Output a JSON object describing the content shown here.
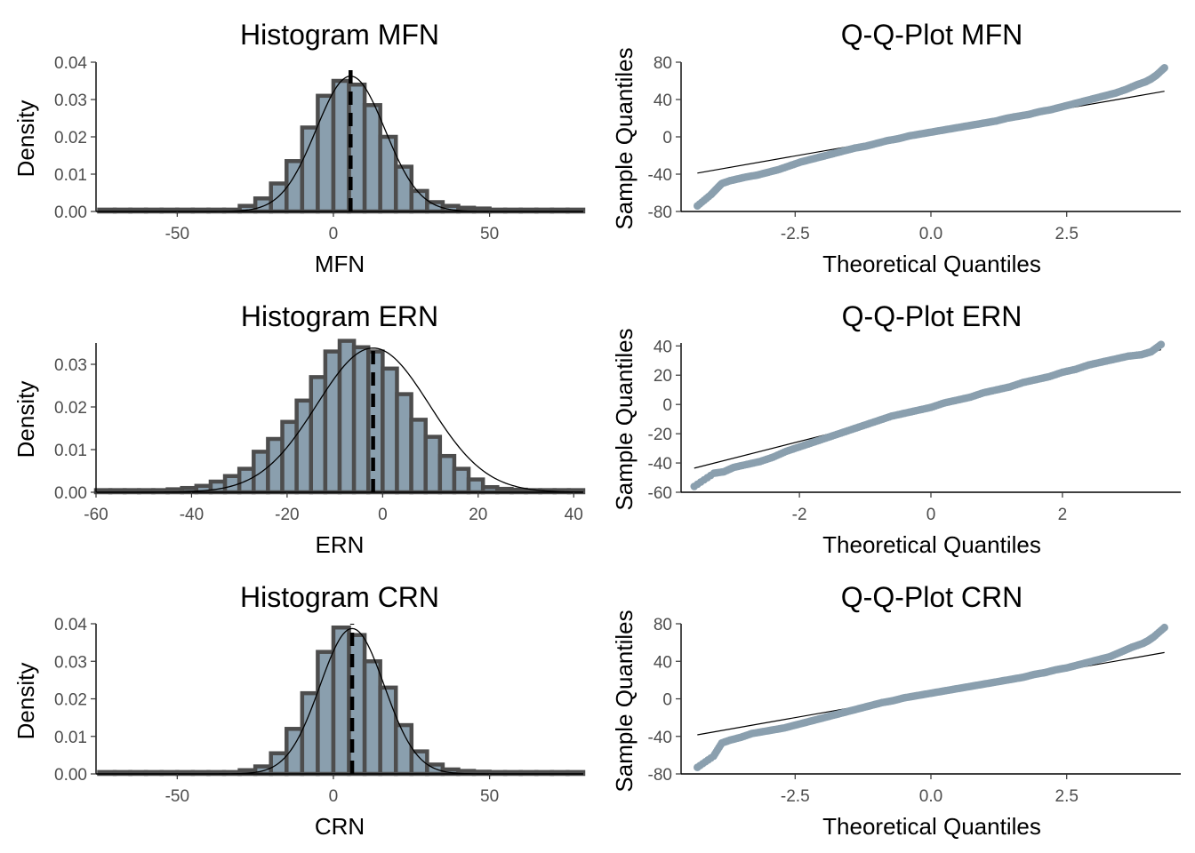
{
  "colors": {
    "bar_fill": "#8a9fae",
    "bar_outline": "#4d4d4d",
    "points": "#8a9fae",
    "line": "#000000"
  },
  "chart_data": [
    {
      "type": "histogram",
      "title": "Histogram MFN",
      "xlabel": "MFN",
      "ylabel": "Density",
      "xlim": [
        -76,
        80
      ],
      "ylim": [
        0,
        0.04
      ],
      "xticks": [
        -50,
        0,
        50
      ],
      "yticks": [
        0.0,
        0.01,
        0.02,
        0.03,
        0.04
      ],
      "ytick_labels": [
        "0.00",
        "0.01",
        "0.02",
        "0.03",
        "0.04"
      ],
      "bin_width": 5,
      "bins_start": -75,
      "densities": [
        0.0005,
        0.0005,
        0.0005,
        0.0005,
        0.0005,
        0.0005,
        0.0005,
        0.0005,
        0.0005,
        0.0015,
        0.0035,
        0.0075,
        0.0135,
        0.0225,
        0.031,
        0.035,
        0.034,
        0.0285,
        0.02,
        0.012,
        0.0055,
        0.0025,
        0.0015,
        0.001,
        0.0008,
        0.0005,
        0.0005,
        0.0005,
        0.0005,
        0.0005,
        0.0005
      ],
      "normal_curve": {
        "mean": 5.5,
        "sd": 11
      },
      "mean_line": 5.5
    },
    {
      "type": "scatter",
      "subtype": "qq",
      "title": "Q-Q-Plot MFN",
      "xlabel": "Theoretical Quantiles",
      "ylabel": "Sample Quantiles",
      "xlim": [
        -4.6,
        4.6
      ],
      "ylim": [
        -80,
        80
      ],
      "xticks": [
        -2.5,
        0.0,
        2.5
      ],
      "xtick_labels": [
        "-2.5",
        "0.0",
        "2.5"
      ],
      "yticks": [
        -80,
        -40,
        0,
        40,
        80
      ],
      "qq_line": {
        "intercept": 5.0,
        "slope": 10.2
      },
      "points": [
        [
          -4.3,
          -74
        ],
        [
          -4.05,
          -62
        ],
        [
          -3.95,
          -56
        ],
        [
          -3.85,
          -50
        ],
        [
          -3.7,
          -47
        ],
        [
          -3.55,
          -45
        ],
        [
          -3.4,
          -43
        ],
        [
          -3.2,
          -41
        ],
        [
          -3.0,
          -38
        ],
        [
          -2.8,
          -35
        ],
        [
          -2.6,
          -31
        ],
        [
          -2.4,
          -27
        ],
        [
          -2.2,
          -24
        ],
        [
          -2.0,
          -21
        ],
        [
          -1.8,
          -18
        ],
        [
          -1.6,
          -15
        ],
        [
          -1.4,
          -12
        ],
        [
          -1.2,
          -10
        ],
        [
          -1.0,
          -7
        ],
        [
          -0.8,
          -4
        ],
        [
          -0.6,
          -2
        ],
        [
          -0.4,
          1
        ],
        [
          -0.2,
          3
        ],
        [
          0.0,
          5
        ],
        [
          0.2,
          7
        ],
        [
          0.4,
          9
        ],
        [
          0.6,
          11
        ],
        [
          0.8,
          13
        ],
        [
          1.0,
          15
        ],
        [
          1.2,
          17
        ],
        [
          1.4,
          20
        ],
        [
          1.6,
          22
        ],
        [
          1.8,
          24
        ],
        [
          2.0,
          27
        ],
        [
          2.2,
          29
        ],
        [
          2.4,
          32
        ],
        [
          2.6,
          35
        ],
        [
          2.8,
          38
        ],
        [
          3.0,
          41
        ],
        [
          3.2,
          44
        ],
        [
          3.4,
          47
        ],
        [
          3.6,
          51
        ],
        [
          3.8,
          56
        ],
        [
          3.95,
          59
        ],
        [
          4.05,
          62
        ],
        [
          4.15,
          66
        ],
        [
          4.3,
          74
        ]
      ]
    },
    {
      "type": "histogram",
      "title": "Histogram ERN",
      "xlabel": "ERN",
      "ylabel": "Density",
      "xlim": [
        -60,
        42
      ],
      "ylim": [
        0,
        0.035
      ],
      "xticks": [
        -60,
        -40,
        -20,
        0,
        20,
        40
      ],
      "yticks": [
        0.0,
        0.01,
        0.02,
        0.03
      ],
      "ytick_labels": [
        "0.00",
        "0.01",
        "0.02",
        "0.03"
      ],
      "bin_width": 3,
      "bins_start": -60,
      "densities": [
        0.0005,
        0.0005,
        0.0005,
        0.0005,
        0.0005,
        0.0007,
        0.001,
        0.0015,
        0.0025,
        0.0038,
        0.0055,
        0.0095,
        0.0125,
        0.0165,
        0.0215,
        0.027,
        0.033,
        0.0355,
        0.034,
        0.033,
        0.029,
        0.023,
        0.017,
        0.013,
        0.0085,
        0.0055,
        0.003,
        0.0012,
        0.0008,
        0.0006,
        0.0005,
        0.0005,
        0.0005,
        0.0005
      ],
      "normal_curve": {
        "mean": -2,
        "sd": 11.8
      },
      "mean_line": -2
    },
    {
      "type": "scatter",
      "subtype": "qq",
      "title": "Q-Q-Plot ERN",
      "xlabel": "Theoretical Quantiles",
      "ylabel": "Sample Quantiles",
      "xlim": [
        -3.8,
        3.8
      ],
      "ylim": [
        -60,
        42
      ],
      "xticks": [
        -2,
        0,
        2
      ],
      "yticks": [
        -60,
        -40,
        -20,
        0,
        20,
        40
      ],
      "qq_line": {
        "intercept": -2.5,
        "slope": 11.4
      },
      "points": [
        [
          -3.6,
          -56
        ],
        [
          -3.3,
          -47
        ],
        [
          -3.15,
          -46
        ],
        [
          -3.0,
          -43
        ],
        [
          -2.8,
          -41
        ],
        [
          -2.6,
          -39
        ],
        [
          -2.4,
          -36
        ],
        [
          -2.2,
          -32
        ],
        [
          -2.0,
          -29
        ],
        [
          -1.8,
          -26
        ],
        [
          -1.6,
          -23
        ],
        [
          -1.4,
          -20
        ],
        [
          -1.2,
          -17
        ],
        [
          -1.0,
          -14
        ],
        [
          -0.8,
          -11
        ],
        [
          -0.6,
          -8
        ],
        [
          -0.4,
          -6
        ],
        [
          -0.2,
          -4
        ],
        [
          0.0,
          -2
        ],
        [
          0.2,
          1
        ],
        [
          0.4,
          3
        ],
        [
          0.6,
          5
        ],
        [
          0.8,
          8
        ],
        [
          1.0,
          10
        ],
        [
          1.2,
          12
        ],
        [
          1.4,
          15
        ],
        [
          1.6,
          17
        ],
        [
          1.8,
          19
        ],
        [
          2.0,
          22
        ],
        [
          2.2,
          24
        ],
        [
          2.4,
          27
        ],
        [
          2.6,
          29
        ],
        [
          2.8,
          31
        ],
        [
          3.0,
          33
        ],
        [
          3.2,
          34
        ],
        [
          3.35,
          36
        ],
        [
          3.5,
          41
        ]
      ]
    },
    {
      "type": "histogram",
      "title": "Histogram CRN",
      "xlabel": "CRN",
      "ylabel": "Density",
      "xlim": [
        -76,
        80
      ],
      "ylim": [
        0,
        0.04
      ],
      "xticks": [
        -50,
        0,
        50
      ],
      "yticks": [
        0.0,
        0.01,
        0.02,
        0.03,
        0.04
      ],
      "ytick_labels": [
        "0.00",
        "0.01",
        "0.02",
        "0.03",
        "0.04"
      ],
      "bin_width": 5,
      "bins_start": -75,
      "densities": [
        0.0005,
        0.0005,
        0.0005,
        0.0005,
        0.0005,
        0.0005,
        0.0005,
        0.0005,
        0.0005,
        0.001,
        0.002,
        0.0055,
        0.012,
        0.0215,
        0.0325,
        0.039,
        0.037,
        0.03,
        0.023,
        0.013,
        0.006,
        0.0025,
        0.0012,
        0.0008,
        0.0006,
        0.0005,
        0.0005,
        0.0005,
        0.0005,
        0.0005,
        0.0005
      ],
      "normal_curve": {
        "mean": 6,
        "sd": 10.3
      },
      "mean_line": 6
    },
    {
      "type": "scatter",
      "subtype": "qq",
      "title": "Q-Q-Plot CRN",
      "xlabel": "Theoretical Quantiles",
      "ylabel": "Sample Quantiles",
      "xlim": [
        -4.6,
        4.6
      ],
      "ylim": [
        -80,
        80
      ],
      "xticks": [
        -2.5,
        0.0,
        2.5
      ],
      "xtick_labels": [
        "-2.5",
        "0.0",
        "2.5"
      ],
      "yticks": [
        -80,
        -40,
        0,
        40,
        80
      ],
      "qq_line": {
        "intercept": 5.5,
        "slope": 10.2
      },
      "points": [
        [
          -4.3,
          -73
        ],
        [
          -4.0,
          -61
        ],
        [
          -3.85,
          -47
        ],
        [
          -3.7,
          -44
        ],
        [
          -3.5,
          -41
        ],
        [
          -3.3,
          -37
        ],
        [
          -3.1,
          -35
        ],
        [
          -2.9,
          -33
        ],
        [
          -2.7,
          -31
        ],
        [
          -2.5,
          -28
        ],
        [
          -2.3,
          -25
        ],
        [
          -2.1,
          -22
        ],
        [
          -1.9,
          -19
        ],
        [
          -1.7,
          -16
        ],
        [
          -1.5,
          -13
        ],
        [
          -1.3,
          -10
        ],
        [
          -1.1,
          -7
        ],
        [
          -0.9,
          -4
        ],
        [
          -0.7,
          -2
        ],
        [
          -0.5,
          1
        ],
        [
          -0.3,
          3
        ],
        [
          -0.1,
          5
        ],
        [
          0.1,
          7
        ],
        [
          0.3,
          9
        ],
        [
          0.5,
          11
        ],
        [
          0.7,
          13
        ],
        [
          0.9,
          15
        ],
        [
          1.1,
          17
        ],
        [
          1.3,
          19
        ],
        [
          1.5,
          21
        ],
        [
          1.7,
          23
        ],
        [
          1.9,
          26
        ],
        [
          2.1,
          28
        ],
        [
          2.3,
          31
        ],
        [
          2.5,
          33
        ],
        [
          2.7,
          36
        ],
        [
          2.9,
          39
        ],
        [
          3.1,
          42
        ],
        [
          3.3,
          45
        ],
        [
          3.5,
          50
        ],
        [
          3.7,
          55
        ],
        [
          3.9,
          59
        ],
        [
          4.0,
          62
        ],
        [
          4.1,
          66
        ],
        [
          4.3,
          76
        ]
      ]
    }
  ]
}
